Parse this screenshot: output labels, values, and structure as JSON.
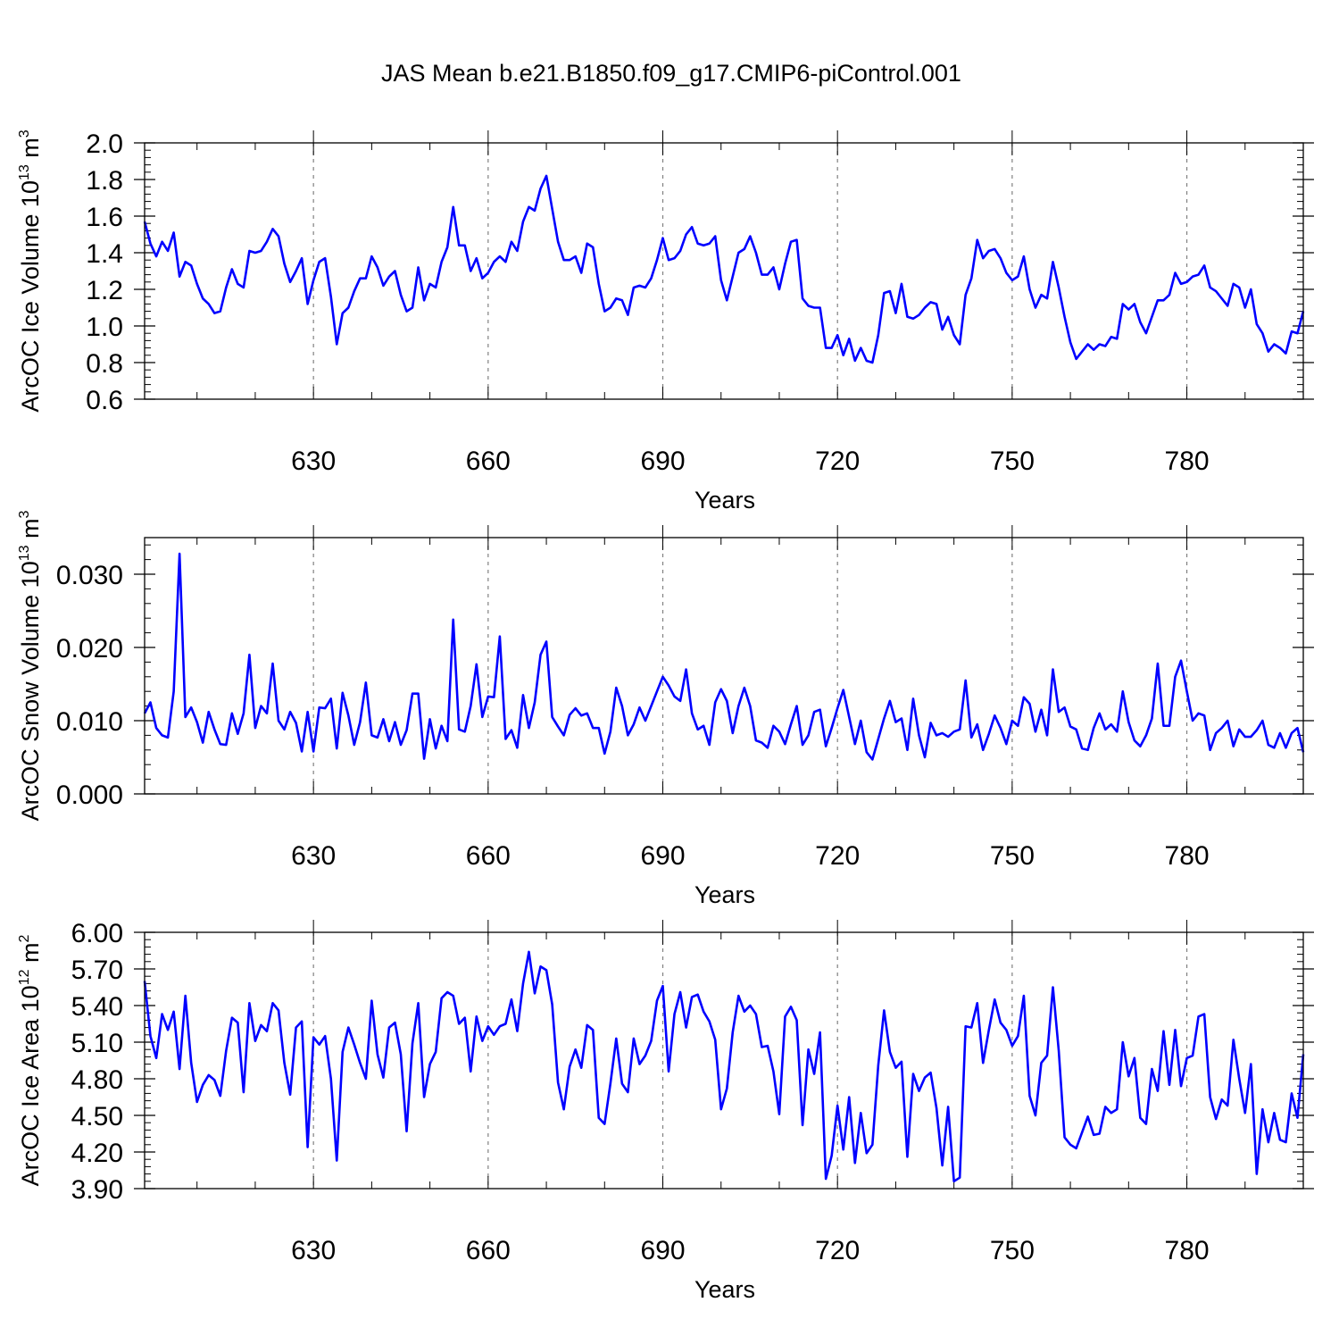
{
  "title": "JAS Mean b.e21.B1850.f09_g17.CMIP6-piControl.001",
  "colors": {
    "series": "#0000ff",
    "axis": "#000000",
    "grid": "#808080"
  },
  "chart_data": [
    {
      "type": "line",
      "xlabel": "Years",
      "ylabel_parts": [
        "ArcOC Ice Volume 10",
        "13",
        " m",
        "3"
      ],
      "xlim": [
        601,
        800
      ],
      "ylim": [
        0.6,
        2.0
      ],
      "xticks": [
        "630",
        "660",
        "690",
        "720",
        "750",
        "780"
      ],
      "xtick_values": [
        630,
        660,
        690,
        720,
        750,
        780
      ],
      "yticks": [
        "0.6",
        "0.8",
        "1.0",
        "1.2",
        "1.4",
        "1.6",
        "1.8",
        "2.0"
      ],
      "ytick_values": [
        0.6,
        0.8,
        1.0,
        1.2,
        1.4,
        1.6,
        1.8,
        2.0
      ],
      "grid": "vertical dashed at x ticks",
      "series": [
        {
          "start": 601,
          "values": [
            1.57,
            1.45,
            1.38,
            1.46,
            1.41,
            1.51,
            1.27,
            1.35,
            1.33,
            1.23,
            1.15,
            1.12,
            1.07,
            1.08,
            1.21,
            1.31,
            1.23,
            1.21,
            1.41,
            1.4,
            1.41,
            1.46,
            1.53,
            1.49,
            1.34,
            1.24,
            1.3,
            1.37,
            1.12,
            1.25,
            1.35,
            1.37,
            1.16,
            0.9,
            1.07,
            1.1,
            1.19,
            1.26,
            1.26,
            1.38,
            1.32,
            1.22,
            1.27,
            1.3,
            1.17,
            1.08,
            1.1,
            1.32,
            1.14,
            1.23,
            1.21,
            1.35,
            1.43,
            1.65,
            1.44,
            1.44,
            1.3,
            1.37,
            1.26,
            1.29,
            1.35,
            1.38,
            1.35,
            1.46,
            1.41,
            1.57,
            1.65,
            1.63,
            1.75,
            1.82,
            1.64,
            1.46,
            1.36,
            1.36,
            1.38,
            1.29,
            1.45,
            1.43,
            1.23,
            1.08,
            1.1,
            1.15,
            1.14,
            1.06,
            1.21,
            1.22,
            1.21,
            1.26,
            1.36,
            1.48,
            1.36,
            1.37,
            1.41,
            1.5,
            1.54,
            1.45,
            1.44,
            1.45,
            1.49,
            1.25,
            1.14,
            1.27,
            1.4,
            1.42,
            1.49,
            1.4,
            1.28,
            1.28,
            1.32,
            1.2,
            1.34,
            1.46,
            1.47,
            1.15,
            1.11,
            1.1,
            1.1,
            0.88,
            0.88,
            0.95,
            0.84,
            0.93,
            0.81,
            0.88,
            0.81,
            0.8,
            0.95,
            1.18,
            1.19,
            1.07,
            1.23,
            1.05,
            1.04,
            1.06,
            1.1,
            1.13,
            1.12,
            0.98,
            1.05,
            0.95,
            0.9,
            1.17,
            1.26,
            1.47,
            1.37,
            1.41,
            1.42,
            1.37,
            1.29,
            1.25,
            1.27,
            1.38,
            1.2,
            1.1,
            1.17,
            1.15,
            1.35,
            1.21,
            1.05,
            0.91,
            0.82,
            0.86,
            0.9,
            0.87,
            0.9,
            0.89,
            0.94,
            0.93,
            1.12,
            1.09,
            1.12,
            1.02,
            0.96,
            1.05,
            1.14,
            1.14,
            1.17,
            1.29,
            1.23,
            1.24,
            1.27,
            1.28,
            1.33,
            1.21,
            1.19,
            1.15,
            1.11,
            1.23,
            1.21,
            1.1,
            1.2,
            1.01,
            0.96,
            0.86,
            0.9,
            0.88,
            0.85,
            0.97,
            0.96,
            1.08
          ]
        }
      ]
    },
    {
      "type": "line",
      "xlabel": "Years",
      "ylabel_parts": [
        "ArcOC Snow Volume 10",
        "13",
        " m",
        "3"
      ],
      "xlim": [
        601,
        800
      ],
      "ylim": [
        0.0,
        0.035
      ],
      "xticks": [
        "630",
        "660",
        "690",
        "720",
        "750",
        "780"
      ],
      "xtick_values": [
        630,
        660,
        690,
        720,
        750,
        780
      ],
      "yticks": [
        "0.000",
        "0.010",
        "0.020",
        "0.030"
      ],
      "ytick_values": [
        0.0,
        0.01,
        0.02,
        0.03
      ],
      "grid": "vertical dashed at x ticks",
      "series": [
        {
          "start": 601,
          "values": [
            0.011,
            0.0125,
            0.009,
            0.008,
            0.0077,
            0.014,
            0.0328,
            0.0105,
            0.0118,
            0.0098,
            0.007,
            0.0112,
            0.0088,
            0.0068,
            0.0067,
            0.011,
            0.0082,
            0.011,
            0.019,
            0.009,
            0.012,
            0.011,
            0.0178,
            0.01,
            0.0088,
            0.0112,
            0.0097,
            0.0058,
            0.0112,
            0.0058,
            0.0118,
            0.0117,
            0.013,
            0.0062,
            0.0138,
            0.0107,
            0.0067,
            0.0098,
            0.0152,
            0.008,
            0.0077,
            0.0102,
            0.0072,
            0.0098,
            0.0067,
            0.0087,
            0.0137,
            0.0137,
            0.0048,
            0.0102,
            0.0062,
            0.0093,
            0.0072,
            0.0238,
            0.0088,
            0.0085,
            0.012,
            0.0177,
            0.0105,
            0.0133,
            0.0132,
            0.0215,
            0.0075,
            0.0087,
            0.0063,
            0.0135,
            0.009,
            0.0125,
            0.019,
            0.0208,
            0.0105,
            0.0092,
            0.008,
            0.0108,
            0.0117,
            0.0107,
            0.011,
            0.009,
            0.009,
            0.0055,
            0.0085,
            0.0145,
            0.012,
            0.008,
            0.0095,
            0.0118,
            0.01,
            0.012,
            0.014,
            0.016,
            0.0148,
            0.0133,
            0.0127,
            0.017,
            0.011,
            0.0088,
            0.0093,
            0.0067,
            0.0125,
            0.0143,
            0.0127,
            0.0083,
            0.012,
            0.0145,
            0.012,
            0.0073,
            0.007,
            0.0063,
            0.0093,
            0.0085,
            0.0068,
            0.0095,
            0.012,
            0.0067,
            0.008,
            0.0112,
            0.0115,
            0.0065,
            0.009,
            0.0117,
            0.0142,
            0.0105,
            0.0068,
            0.01,
            0.0057,
            0.0047,
            0.0075,
            0.0103,
            0.0127,
            0.0098,
            0.0103,
            0.006,
            0.013,
            0.008,
            0.005,
            0.0097,
            0.008,
            0.0083,
            0.0078,
            0.0085,
            0.0088,
            0.0155,
            0.0077,
            0.0095,
            0.006,
            0.0082,
            0.0107,
            0.009,
            0.0068,
            0.01,
            0.0093,
            0.0132,
            0.0123,
            0.0085,
            0.0115,
            0.008,
            0.017,
            0.0112,
            0.0118,
            0.0092,
            0.0088,
            0.0062,
            0.006,
            0.009,
            0.011,
            0.0088,
            0.0095,
            0.0085,
            0.014,
            0.0098,
            0.0073,
            0.0065,
            0.008,
            0.0103,
            0.0178,
            0.0093,
            0.0093,
            0.016,
            0.0182,
            0.014,
            0.01,
            0.011,
            0.0107,
            0.006,
            0.0083,
            0.009,
            0.01,
            0.0065,
            0.0088,
            0.0078,
            0.0078,
            0.0087,
            0.01,
            0.0067,
            0.0063,
            0.0083,
            0.0063,
            0.0083,
            0.009,
            0.0057
          ]
        }
      ]
    },
    {
      "type": "line",
      "xlabel": "Years",
      "ylabel_parts": [
        "ArcOC Ice Area 10",
        "12",
        " m",
        "2"
      ],
      "xlim": [
        601,
        800
      ],
      "ylim": [
        3.9,
        6.0
      ],
      "xticks": [
        "630",
        "660",
        "690",
        "720",
        "750",
        "780"
      ],
      "xtick_values": [
        630,
        660,
        690,
        720,
        750,
        780
      ],
      "yticks": [
        "3.90",
        "4.20",
        "4.50",
        "4.80",
        "5.10",
        "5.40",
        "5.70",
        "6.00"
      ],
      "ytick_values": [
        3.9,
        4.2,
        4.5,
        4.8,
        5.1,
        5.4,
        5.7,
        6.0
      ],
      "grid": "vertical dashed at x ticks",
      "series": [
        {
          "start": 601,
          "values": [
            5.6,
            5.15,
            4.97,
            5.33,
            5.2,
            5.35,
            4.88,
            5.48,
            4.93,
            4.61,
            4.75,
            4.83,
            4.79,
            4.66,
            5.03,
            5.3,
            5.26,
            4.69,
            5.42,
            5.11,
            5.24,
            5.19,
            5.42,
            5.36,
            4.93,
            4.67,
            5.22,
            5.27,
            4.24,
            5.14,
            5.08,
            5.15,
            4.8,
            4.13,
            5.02,
            5.22,
            5.08,
            4.93,
            4.8,
            5.44,
            5.0,
            4.81,
            5.22,
            5.26,
            5.0,
            4.37,
            5.09,
            5.42,
            4.65,
            4.92,
            5.02,
            5.46,
            5.51,
            5.48,
            5.25,
            5.3,
            4.86,
            5.31,
            5.11,
            5.23,
            5.16,
            5.23,
            5.25,
            5.45,
            5.19,
            5.58,
            5.84,
            5.5,
            5.72,
            5.69,
            5.41,
            4.77,
            4.55,
            4.9,
            5.04,
            4.89,
            5.24,
            5.2,
            4.48,
            4.43,
            4.76,
            5.13,
            4.76,
            4.69,
            5.13,
            4.92,
            4.99,
            5.11,
            5.44,
            5.56,
            4.86,
            5.33,
            5.51,
            5.22,
            5.47,
            5.49,
            5.35,
            5.27,
            5.12,
            4.55,
            4.72,
            5.18,
            5.48,
            5.35,
            5.4,
            5.33,
            5.06,
            5.07,
            4.86,
            4.51,
            5.31,
            5.39,
            5.28,
            4.42,
            5.04,
            4.84,
            5.18,
            3.98,
            4.17,
            4.58,
            4.22,
            4.65,
            4.11,
            4.52,
            4.19,
            4.26,
            4.91,
            5.36,
            5.02,
            4.89,
            4.94,
            4.16,
            4.84,
            4.7,
            4.81,
            4.85,
            4.56,
            4.09,
            4.57,
            3.96,
            3.99,
            5.23,
            5.22,
            5.42,
            4.93,
            5.2,
            5.45,
            5.26,
            5.2,
            5.07,
            5.15,
            5.48,
            4.66,
            4.5,
            4.93,
            4.99,
            5.55,
            5.03,
            4.32,
            4.26,
            4.23,
            4.36,
            4.49,
            4.34,
            4.35,
            4.57,
            4.52,
            4.55,
            5.1,
            4.82,
            4.97,
            4.48,
            4.43,
            4.88,
            4.7,
            5.19,
            4.75,
            5.2,
            4.74,
            4.97,
            4.99,
            5.31,
            5.33,
            4.65,
            4.47,
            4.63,
            4.58,
            5.12,
            4.8,
            4.52,
            4.92,
            4.02,
            4.55,
            4.28,
            4.52,
            4.3,
            4.28,
            4.68,
            4.48,
            5.0
          ]
        }
      ]
    }
  ]
}
